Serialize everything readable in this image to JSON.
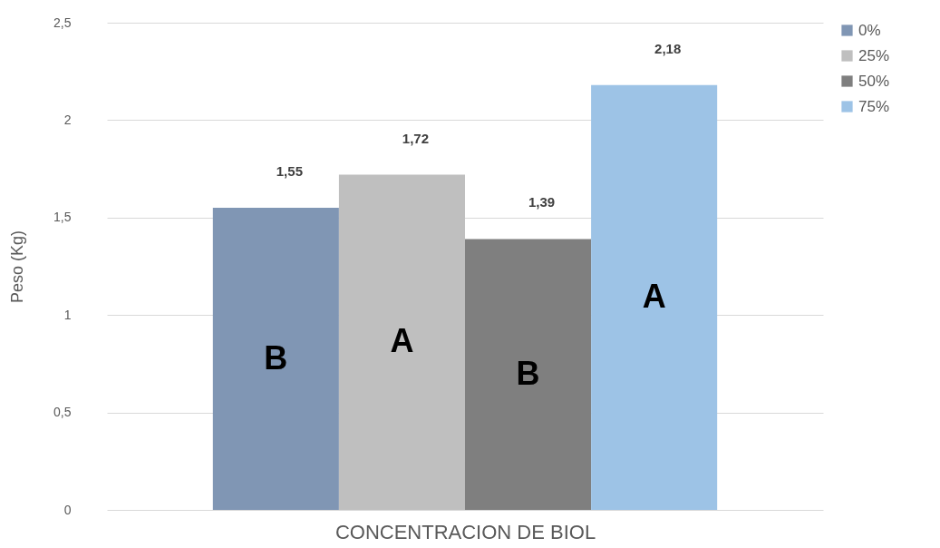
{
  "chart_data": {
    "type": "bar",
    "xlabel": "CONCENTRACION DE BIOL",
    "ylabel": "Peso (Kg)",
    "categories": [
      null
    ],
    "series": [
      {
        "name": "0%",
        "color": "#8096b4",
        "values": [
          1.55
        ],
        "value_labels": [
          "1,55"
        ]
      },
      {
        "name": "25%",
        "color": "#bfbfbf",
        "values": [
          1.72
        ],
        "value_labels": [
          "1,72"
        ]
      },
      {
        "name": "50%",
        "color": "#7f7f7f",
        "values": [
          1.39
        ],
        "value_labels": [
          "1,39"
        ]
      },
      {
        "name": "75%",
        "color": "#9dc3e6",
        "values": [
          2.18
        ],
        "value_labels": [
          "2,18"
        ]
      }
    ],
    "ylim": [
      0,
      2.5
    ],
    "yticks": [
      0,
      {
        "value": 0.5,
        "label": "0,5"
      },
      1,
      {
        "value": 1.5,
        "label": "1,5"
      },
      2,
      {
        "value": 2.5,
        "label": "2,5"
      }
    ],
    "grid": "y",
    "legend": "right",
    "annotations": [
      "B",
      "A",
      "B",
      "A"
    ]
  }
}
